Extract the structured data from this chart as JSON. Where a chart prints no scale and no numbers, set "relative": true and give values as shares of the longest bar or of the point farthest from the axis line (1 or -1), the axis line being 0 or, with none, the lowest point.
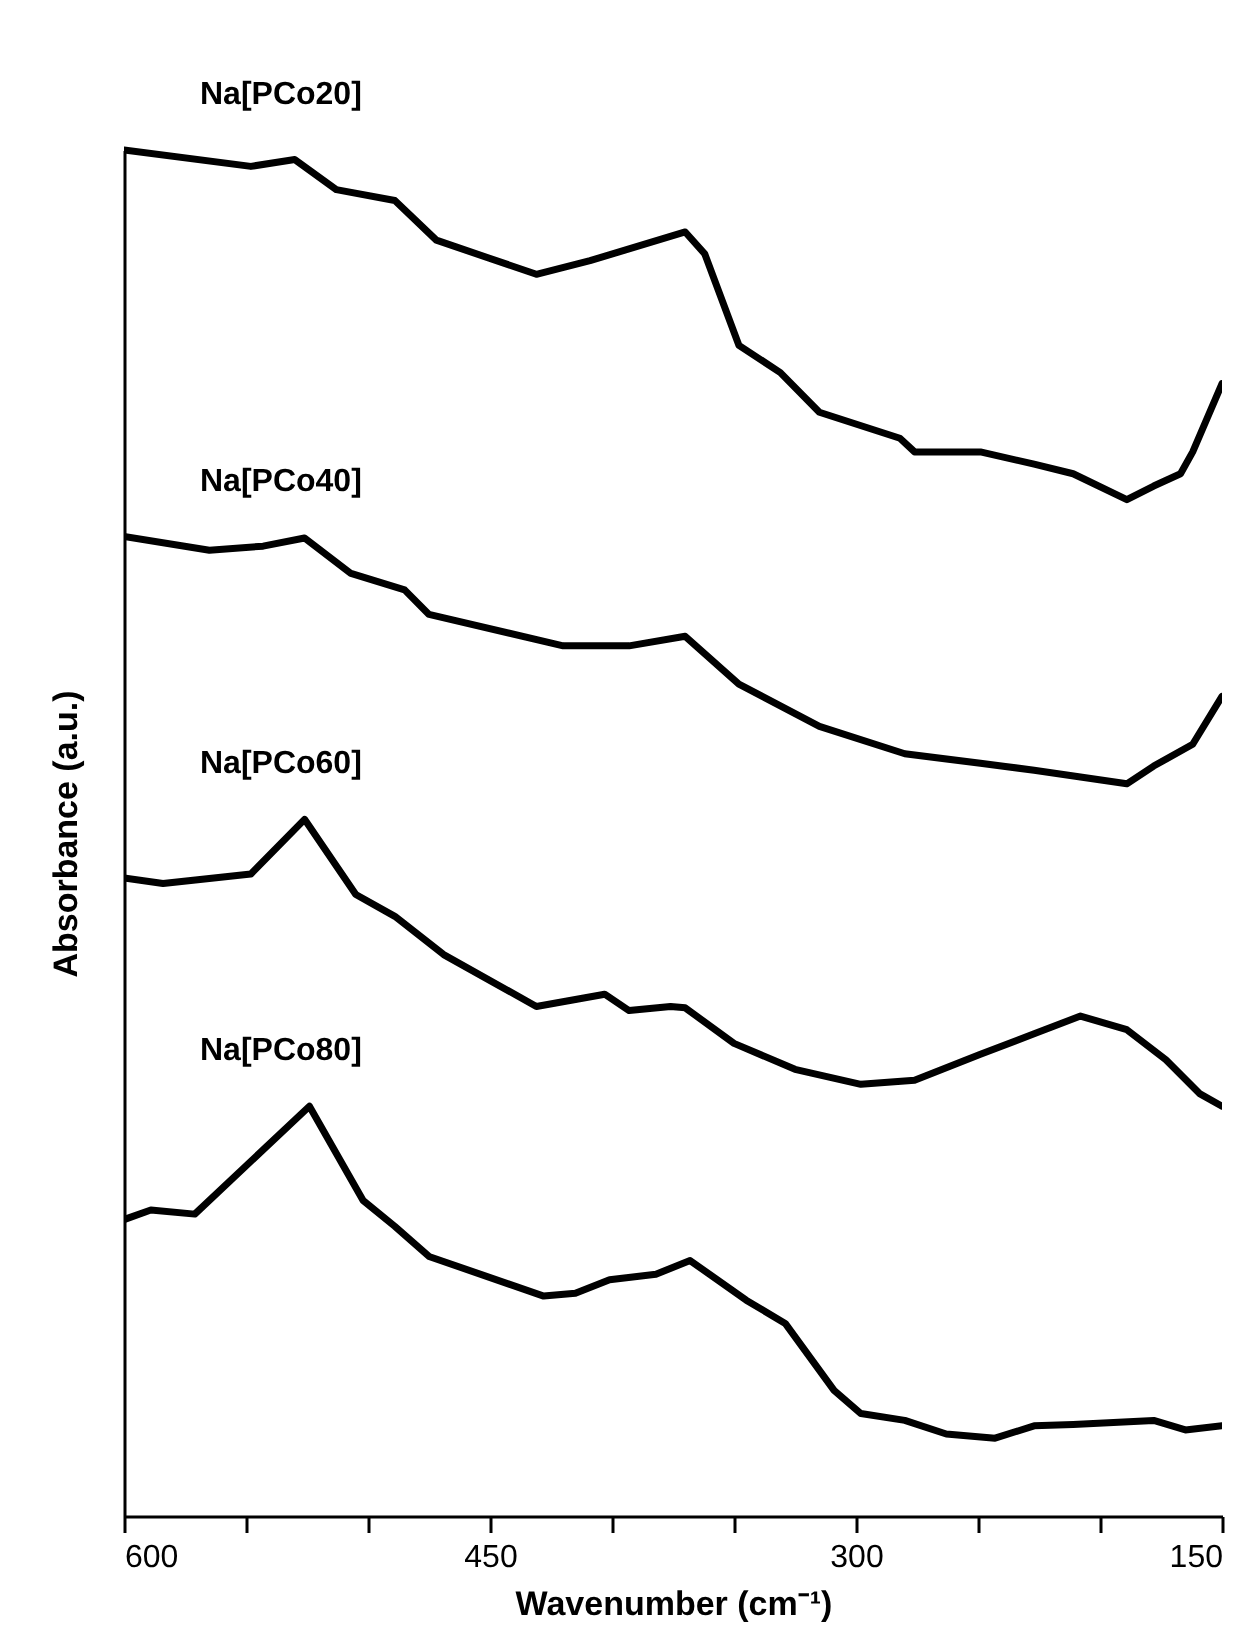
{
  "chart_data": {
    "type": "line",
    "relative": true,
    "xlabel": "Wavenumber  (cm⁻¹)",
    "ylabel": "Absorbance  (a.u.)",
    "xlim": [
      600,
      150
    ],
    "xticks": [
      600,
      {
        "value": 550,
        "label": null
      },
      {
        "value": 500,
        "label": null
      },
      450,
      {
        "value": 400,
        "label": null
      },
      {
        "value": 350,
        "label": null
      },
      300,
      {
        "value": 250,
        "label": null
      },
      {
        "value": 200,
        "label": null
      },
      150
    ],
    "grid": false,
    "legend": false,
    "marker": "none",
    "line_style": "solid",
    "series": [
      {
        "name": "Na[PCo20]",
        "color": "#000000",
        "x": [
          600,
          548,
          530,
          513,
          489,
          472,
          431,
          409,
          370,
          362,
          348,
          331,
          315,
          282,
          276,
          249,
          227,
          211,
          189,
          178,
          167,
          162,
          150
        ],
        "values": [
          1.0,
          0.988,
          0.993,
          0.971,
          0.963,
          0.934,
          0.909,
          0.919,
          0.94,
          0.924,
          0.857,
          0.837,
          0.808,
          0.789,
          0.779,
          0.779,
          0.77,
          0.763,
          0.744,
          0.754,
          0.763,
          0.779,
          0.829
        ]
      },
      {
        "name": "Na[PCo40]",
        "color": "#000000",
        "x": [
          600,
          565,
          543,
          526,
          507,
          485,
          475,
          420,
          393,
          370,
          348,
          315,
          280,
          249,
          227,
          189,
          178,
          162,
          150
        ],
        "values": [
          0.717,
          0.707,
          0.71,
          0.716,
          0.69,
          0.678,
          0.66,
          0.637,
          0.637,
          0.644,
          0.609,
          0.578,
          0.558,
          0.551,
          0.546,
          0.536,
          0.549,
          0.565,
          0.6
        ]
      },
      {
        "name": "Na[PCo60]",
        "color": "#000000",
        "x": [
          600,
          584,
          548,
          526,
          505,
          489,
          469,
          431,
          403,
          393,
          376,
          370,
          350,
          325,
          298,
          276,
          249,
          227,
          208,
          189,
          173,
          159,
          150
        ],
        "values": [
          0.467,
          0.463,
          0.47,
          0.51,
          0.455,
          0.439,
          0.411,
          0.373,
          0.382,
          0.37,
          0.373,
          0.372,
          0.346,
          0.327,
          0.316,
          0.319,
          0.338,
          0.353,
          0.366,
          0.356,
          0.334,
          0.309,
          0.3
        ]
      },
      {
        "name": "Na[PCo80]",
        "color": "#000000",
        "x": [
          600,
          589,
          571,
          524,
          502,
          489,
          475,
          428,
          415,
          401,
          382,
          368,
          345,
          329,
          309,
          298,
          280,
          263,
          243,
          227,
          211,
          178,
          165,
          150
        ],
        "values": [
          0.217,
          0.224,
          0.221,
          0.3,
          0.231,
          0.212,
          0.19,
          0.161,
          0.163,
          0.173,
          0.177,
          0.187,
          0.158,
          0.141,
          0.092,
          0.075,
          0.07,
          0.06,
          0.057,
          0.066,
          0.067,
          0.07,
          0.063,
          0.066
        ]
      }
    ]
  }
}
